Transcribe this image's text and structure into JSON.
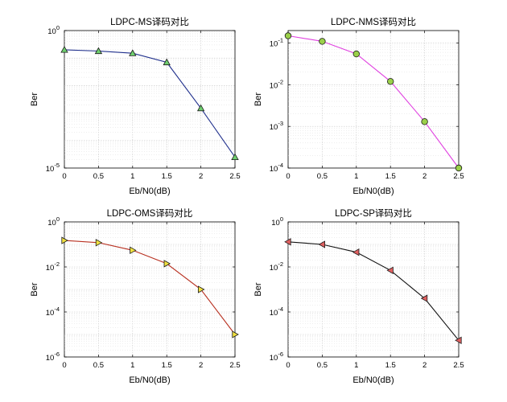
{
  "chart_data": [
    {
      "type": "line",
      "title": "LDPC-MS译码对比",
      "xlabel": "Eb/N0(dB)",
      "ylabel": "Ber",
      "yscale": "log",
      "xlim": [
        0,
        2.5
      ],
      "ylim": [
        1e-05,
        1
      ],
      "x_ticks": [
        "0",
        "0.5",
        "1",
        "1.5",
        "2",
        "2.5"
      ],
      "y_ticks": [
        {
          "base": "10",
          "exp": "0"
        },
        {
          "base": "10",
          "exp": "-5"
        }
      ],
      "grid": "on",
      "x": [
        0,
        0.5,
        1,
        1.5,
        2,
        2.5
      ],
      "series": [
        {
          "values": [
            0.2,
            0.18,
            0.15,
            0.07,
            0.0015,
            2.5e-05
          ],
          "line_color": "#1f2f8c",
          "marker": "triangle-up",
          "marker_color": "#6fcf6f"
        }
      ]
    },
    {
      "type": "line",
      "title": "LDPC-NMS译码对比",
      "xlabel": "Eb/N0(dB)",
      "ylabel": "Ber",
      "yscale": "log",
      "xlim": [
        0,
        2.5
      ],
      "ylim": [
        0.0001,
        0.2
      ],
      "x_ticks": [
        "0",
        "0.5",
        "1",
        "1.5",
        "2",
        "2.5"
      ],
      "y_ticks": [
        {
          "base": "10",
          "exp": "-1"
        },
        {
          "base": "10",
          "exp": "-2"
        },
        {
          "base": "10",
          "exp": "-3"
        },
        {
          "base": "10",
          "exp": "-4"
        }
      ],
      "grid": "on",
      "x": [
        0,
        0.5,
        1,
        1.5,
        2,
        2.5
      ],
      "series": [
        {
          "values": [
            0.15,
            0.11,
            0.055,
            0.012,
            0.0013,
            0.0001
          ],
          "line_color": "#e040e0",
          "marker": "circle",
          "marker_color": "#9bd04a"
        }
      ]
    },
    {
      "type": "line",
      "title": "LDPC-OMS译码对比",
      "xlabel": "Eb/N0(dB)",
      "ylabel": "Ber",
      "yscale": "log",
      "xlim": [
        0,
        2.5
      ],
      "ylim": [
        1e-06,
        1
      ],
      "x_ticks": [
        "0",
        "0.5",
        "1",
        "1.5",
        "2",
        "2.5"
      ],
      "y_ticks": [
        {
          "base": "10",
          "exp": "0"
        },
        {
          "base": "10",
          "exp": "-2"
        },
        {
          "base": "10",
          "exp": "-4"
        },
        {
          "base": "10",
          "exp": "-6"
        }
      ],
      "grid": "on",
      "x": [
        0,
        0.5,
        1,
        1.5,
        2,
        2.5
      ],
      "series": [
        {
          "values": [
            0.15,
            0.12,
            0.055,
            0.014,
            0.001,
            1e-05
          ],
          "line_color": "#b83020",
          "marker": "triangle-right",
          "marker_color": "#f0e040"
        }
      ]
    },
    {
      "type": "line",
      "title": "LDPC-SP译码对比",
      "xlabel": "Eb/N0(dB)",
      "ylabel": "Ber",
      "yscale": "log",
      "xlim": [
        0,
        2.5
      ],
      "ylim": [
        1e-06,
        1
      ],
      "x_ticks": [
        "0",
        "0.5",
        "1",
        "1.5",
        "2",
        "2.5"
      ],
      "y_ticks": [
        {
          "base": "10",
          "exp": "0"
        },
        {
          "base": "10",
          "exp": "-2"
        },
        {
          "base": "10",
          "exp": "-4"
        },
        {
          "base": "10",
          "exp": "-6"
        }
      ],
      "grid": "on",
      "x": [
        0,
        0.5,
        1,
        1.5,
        2,
        2.5
      ],
      "series": [
        {
          "values": [
            0.13,
            0.1,
            0.045,
            0.007,
            0.0004,
            5.5e-06
          ],
          "line_color": "#111111",
          "marker": "triangle-left",
          "marker_color": "#e06060"
        }
      ]
    }
  ]
}
